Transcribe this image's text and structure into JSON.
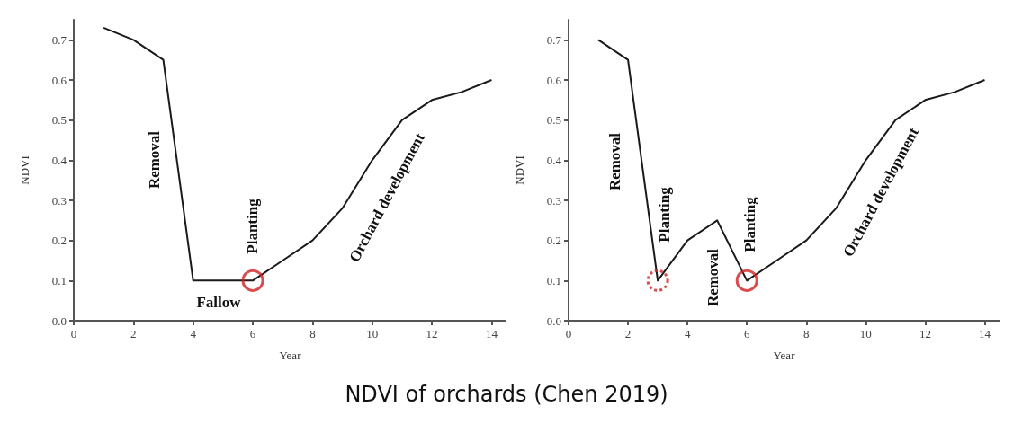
{
  "chart_data": [
    {
      "type": "line",
      "xlabel": "Year",
      "ylabel": "NDVI",
      "xlim": [
        0,
        14.5
      ],
      "xticks": [
        0,
        2,
        4,
        6,
        8,
        10,
        12,
        14
      ],
      "ylim": [
        0,
        0.75
      ],
      "yticks": [
        {
          "value": 0,
          "label": "0.0"
        },
        0.1,
        0.2,
        0.3,
        0.4,
        0.5,
        0.6,
        0.7
      ],
      "grid": false,
      "marker": "none",
      "series": [
        {
          "type": "line",
          "color": "#1a1a1a",
          "x": [
            1,
            2,
            3,
            4,
            5,
            6,
            7,
            8,
            9,
            10,
            11,
            12,
            13,
            14
          ],
          "values": [
            0.73,
            0.7,
            0.65,
            0.1,
            0.1,
            0.1,
            0.15,
            0.2,
            0.28,
            0.4,
            0.5,
            0.55,
            0.57,
            0.6
          ]
        },
        {
          "type": "scatter",
          "color": "#d02020",
          "marker": "circle",
          "line_style": "solid",
          "x": [
            6
          ],
          "values": [
            0.1
          ]
        }
      ],
      "annotations": [
        "Removal",
        "Planting",
        "Fallow",
        "Orchard development",
        "NDVI of orchards (Chen 2019)"
      ]
    },
    {
      "type": "line",
      "xlabel": "Year",
      "ylabel": "NDVI",
      "xlim": [
        0,
        14.5
      ],
      "xticks": [
        0,
        2,
        4,
        6,
        8,
        10,
        12,
        14
      ],
      "ylim": [
        0,
        0.75
      ],
      "yticks": [
        {
          "value": 0,
          "label": "0.0"
        },
        0.1,
        0.2,
        0.3,
        0.4,
        0.5,
        0.6,
        0.7
      ],
      "grid": false,
      "marker": "none",
      "series": [
        {
          "type": "line",
          "color": "#1a1a1a",
          "x": [
            1,
            2,
            3,
            4,
            5,
            6,
            7,
            8,
            9,
            10,
            11,
            12,
            13,
            14
          ],
          "values": [
            0.7,
            0.65,
            0.1,
            0.2,
            0.25,
            0.1,
            0.15,
            0.2,
            0.28,
            0.4,
            0.5,
            0.55,
            0.57,
            0.6
          ]
        },
        {
          "type": "scatter",
          "color": "#d02020",
          "marker": "circle",
          "line_style": "dotted",
          "x": [
            3
          ],
          "values": [
            0.1
          ]
        },
        {
          "type": "scatter",
          "color": "#d02020",
          "marker": "circle",
          "line_style": "solid",
          "x": [
            6
          ],
          "values": [
            0.1
          ]
        }
      ],
      "annotations": [
        "Removal",
        "Planting",
        "Removal",
        "Planting",
        "Orchard development"
      ]
    }
  ]
}
